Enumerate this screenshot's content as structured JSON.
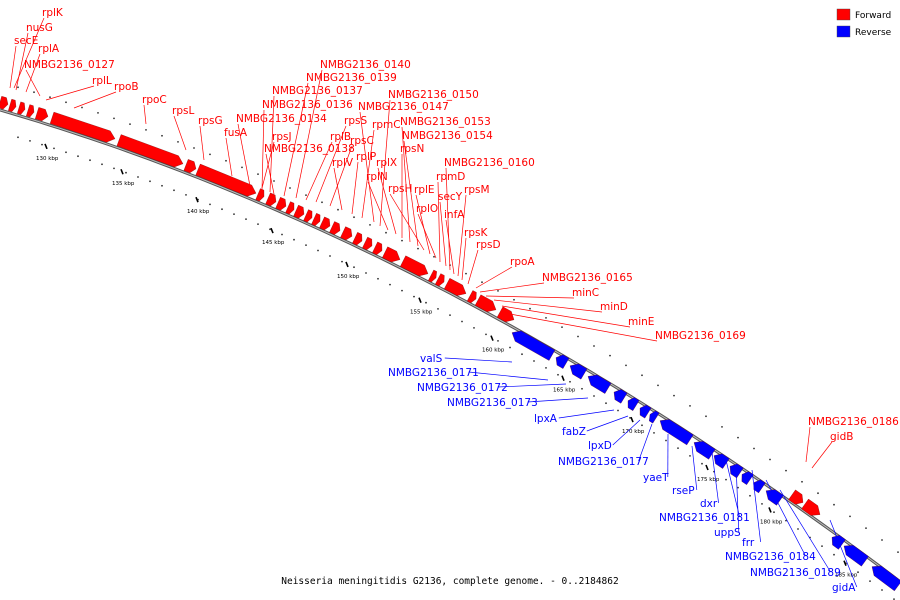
{
  "caption": "Neisseria meningitidis G2136, complete genome. - 0..2184862",
  "legend": [
    {
      "label": "Forward",
      "color": "#ff0000"
    },
    {
      "label": "Reverse",
      "color": "#0000ff"
    }
  ],
  "ticks": [
    "130 kbp",
    "135 kbp",
    "140 kbp",
    "145 kbp",
    "150 kbp",
    "155 kbp",
    "160 kbp",
    "165 kbp",
    "170 kbp",
    "175 kbp",
    "180 kbp",
    "185 kbp"
  ],
  "forward_labels": [
    "rplK",
    "nusG",
    "secE",
    "rplA",
    "NMBG2136_0127",
    "rplL",
    "rpoB",
    "rpoC",
    "rpsL",
    "rpsG",
    "fusA",
    "NMBG2136_0134",
    "rpsJ",
    "NMBG2136_0136",
    "NMBG2136_0137",
    "NMBG2136_0138",
    "NMBG2136_0139",
    "NMBG2136_0140",
    "rplB",
    "rpsS",
    "rpsC",
    "rplV",
    "rplP",
    "rpmC",
    "NMBG2136_0147",
    "NMBG2136_0150",
    "rplN",
    "rplX",
    "rpsN",
    "NMBG2136_0153",
    "NMBG2136_0154",
    "rpsH",
    "rplE",
    "rplO",
    "rpmD",
    "secY",
    "NMBG2136_0160",
    "infA",
    "rpsM",
    "rpsK",
    "rpsD",
    "rpoA",
    "NMBG2136_0165",
    "minC",
    "minD",
    "minE",
    "NMBG2136_0169",
    "NMBG2136_0186",
    "gidB"
  ],
  "reverse_labels": [
    "valS",
    "NMBG2136_0171",
    "NMBG2136_0172",
    "NMBG2136_0173",
    "lpxA",
    "fabZ",
    "lpxD",
    "NMBG2136_0177",
    "yaeT",
    "rseP",
    "dxr",
    "NMBG2136_0181",
    "uppS",
    "frr",
    "NMBG2136_0184",
    "NMBG2136_0189",
    "gidA"
  ]
}
